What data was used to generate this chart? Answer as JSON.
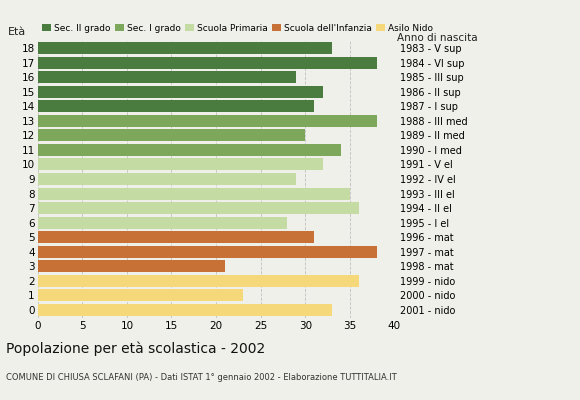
{
  "ages": [
    18,
    17,
    16,
    15,
    14,
    13,
    12,
    11,
    10,
    9,
    8,
    7,
    6,
    5,
    4,
    3,
    2,
    1,
    0
  ],
  "values": [
    33,
    38,
    29,
    32,
    31,
    38,
    30,
    34,
    32,
    29,
    35,
    36,
    28,
    31,
    38,
    21,
    36,
    23,
    33
  ],
  "right_labels": [
    "1983 - V sup",
    "1984 - VI sup",
    "1985 - III sup",
    "1986 - II sup",
    "1987 - I sup",
    "1988 - III med",
    "1989 - II med",
    "1990 - I med",
    "1991 - V el",
    "1992 - IV el",
    "1993 - III el",
    "1994 - II el",
    "1995 - I el",
    "1996 - mat",
    "1997 - mat",
    "1998 - mat",
    "1999 - nido",
    "2000 - nido",
    "2001 - nido"
  ],
  "colors": [
    "#4a7c3f",
    "#4a7c3f",
    "#4a7c3f",
    "#4a7c3f",
    "#4a7c3f",
    "#7da85b",
    "#7da85b",
    "#7da85b",
    "#c5dba4",
    "#c5dba4",
    "#c5dba4",
    "#c5dba4",
    "#c5dba4",
    "#c87137",
    "#c87137",
    "#c87137",
    "#f5d87a",
    "#f5d87a",
    "#f5d87a"
  ],
  "legend_labels": [
    "Sec. II grado",
    "Sec. I grado",
    "Scuola Primaria",
    "Scuola dell'Infanzia",
    "Asilo Nido"
  ],
  "legend_colors": [
    "#4a7c3f",
    "#7da85b",
    "#c5dba4",
    "#c87137",
    "#f5d87a"
  ],
  "title": "Popolazione per età scolastica - 2002",
  "subtitle": "COMUNE DI CHIUSA SCLAFANI (PA) - Dati ISTAT 1° gennaio 2002 - Elaborazione TUTTITALIA.IT",
  "ylabel_left": "Età",
  "ylabel_right": "Anno di nascita",
  "xlim": [
    0,
    40
  ],
  "xticks": [
    0,
    5,
    10,
    15,
    20,
    25,
    30,
    35,
    40
  ],
  "background_color": "#f0f0eb",
  "bar_height": 0.82,
  "gridcolor": "#c0c0c0"
}
